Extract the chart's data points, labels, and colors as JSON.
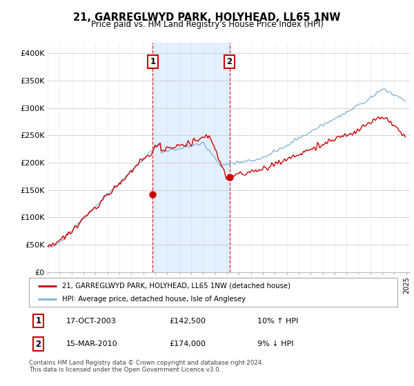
{
  "title": "21, GARREGLWYD PARK, HOLYHEAD, LL65 1NW",
  "subtitle": "Price paid vs. HM Land Registry's House Price Index (HPI)",
  "background_color": "#ffffff",
  "grid_color": "#cccccc",
  "hpi_line_color": "#7bafd4",
  "price_line_color": "#cc0000",
  "shade_color": "#ddeeff",
  "purchase1": {
    "date_num": 2003.79,
    "price": 142500,
    "label": "1"
  },
  "purchase2": {
    "date_num": 2010.21,
    "price": 174000,
    "label": "2"
  },
  "ylim": [
    0,
    420000
  ],
  "yticks": [
    0,
    50000,
    100000,
    150000,
    200000,
    250000,
    300000,
    350000,
    400000
  ],
  "ytick_labels": [
    "£0",
    "£50K",
    "£100K",
    "£150K",
    "£200K",
    "£250K",
    "£300K",
    "£350K",
    "£400K"
  ],
  "legend_label_red": "21, GARREGLWYD PARK, HOLYHEAD, LL65 1NW (detached house)",
  "legend_label_blue": "HPI: Average price, detached house, Isle of Anglesey",
  "footnote": "Contains HM Land Registry data © Crown copyright and database right 2024.\nThis data is licensed under the Open Government Licence v3.0.",
  "table_rows": [
    {
      "num": "1",
      "date": "17-OCT-2003",
      "price": "£142,500",
      "hpi": "10% ↑ HPI"
    },
    {
      "num": "2",
      "date": "15-MAR-2010",
      "price": "£174,000",
      "hpi": "9% ↓ HPI"
    }
  ]
}
